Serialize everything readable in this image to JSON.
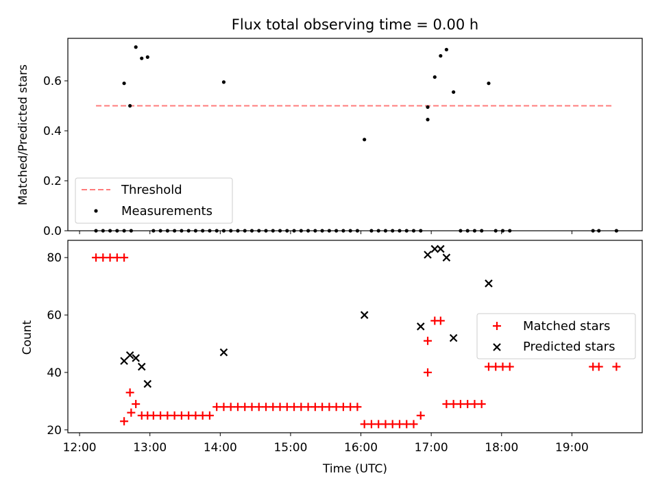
{
  "figure": {
    "title": "Flux total observing time = 0.00 h"
  },
  "chart_data": [
    {
      "type": "scatter",
      "title": "Flux total observing time = 0.00 h",
      "xlabel": "",
      "ylabel": "Matched/Predicted stars",
      "xlim": [
        "11:50",
        "20:00"
      ],
      "ylim": [
        0,
        0.77
      ],
      "x_axis_type": "time",
      "y_ticks": [
        0.0,
        0.2,
        0.4,
        0.6
      ],
      "y_tick_labels": [
        "0.0",
        "0.2",
        "0.4",
        "0.6"
      ],
      "legend": {
        "placement": "lower-left",
        "entries": [
          "Threshold",
          "Measurements"
        ]
      },
      "grid": false,
      "series": [
        {
          "name": "Threshold",
          "kind": "line",
          "style": "dashed",
          "color": "#ff7b7b",
          "x": [
            "12:14",
            "19:35"
          ],
          "y": [
            0.5,
            0.5
          ]
        },
        {
          "name": "Measurements",
          "kind": "points",
          "color": "#000000",
          "x": [
            "12:14",
            "12:20",
            "12:26",
            "12:32",
            "12:38",
            "12:44",
            "12:38",
            "12:43",
            "12:48",
            "12:53",
            "12:58",
            "13:03",
            "13:09",
            "13:15",
            "13:21",
            "13:27",
            "13:33",
            "13:39",
            "13:45",
            "13:51",
            "13:57",
            "14:03",
            "14:03",
            "14:09",
            "14:15",
            "14:21",
            "14:27",
            "14:33",
            "14:39",
            "14:45",
            "14:51",
            "14:57",
            "15:03",
            "15:09",
            "15:15",
            "15:21",
            "15:27",
            "15:33",
            "15:39",
            "15:45",
            "15:51",
            "15:57",
            "16:03",
            "16:09",
            "16:15",
            "16:21",
            "16:27",
            "16:33",
            "16:39",
            "16:45",
            "16:51",
            "16:57",
            "16:57",
            "17:03",
            "17:08",
            "17:13",
            "17:19",
            "17:25",
            "17:31",
            "17:37",
            "17:43",
            "17:49",
            "17:55",
            "18:01",
            "18:07",
            "19:18",
            "19:23",
            "19:38"
          ],
          "y": [
            0,
            0,
            0,
            0,
            0,
            0,
            0.59,
            0.5,
            0.735,
            0.69,
            0.695,
            0,
            0,
            0,
            0,
            0,
            0,
            0,
            0,
            0,
            0,
            0,
            0.595,
            0,
            0,
            0,
            0,
            0,
            0,
            0,
            0,
            0,
            0,
            0,
            0,
            0,
            0,
            0,
            0,
            0,
            0,
            0,
            0.365,
            0,
            0,
            0,
            0,
            0,
            0,
            0,
            0,
            0.445,
            0.495,
            0.615,
            0.7,
            0.725,
            0.555,
            0,
            0,
            0,
            0,
            0.59,
            0,
            0,
            0,
            0,
            0,
            0
          ]
        }
      ]
    },
    {
      "type": "scatter",
      "title": "",
      "xlabel": "Time (UTC)",
      "ylabel": "Count",
      "xlim": [
        "11:50",
        "20:00"
      ],
      "ylim": [
        19,
        86
      ],
      "x_axis_type": "time",
      "x_ticks": [
        "12:00",
        "13:00",
        "14:00",
        "15:00",
        "16:00",
        "17:00",
        "18:00",
        "19:00"
      ],
      "y_ticks": [
        20,
        40,
        60,
        80
      ],
      "y_tick_labels": [
        "20",
        "40",
        "60",
        "80"
      ],
      "legend": {
        "placement": "center-right",
        "entries": [
          "Matched stars",
          "Predicted stars"
        ]
      },
      "grid": false,
      "series": [
        {
          "name": "Matched stars",
          "marker": "+",
          "color": "#ff0000",
          "x": [
            "12:14",
            "12:20",
            "12:26",
            "12:32",
            "12:38",
            "12:44",
            "12:38",
            "12:43",
            "12:48",
            "12:53",
            "12:58",
            "13:03",
            "13:09",
            "13:15",
            "13:21",
            "13:27",
            "13:33",
            "13:39",
            "13:45",
            "13:51",
            "13:57",
            "14:03",
            "14:09",
            "14:15",
            "14:21",
            "14:27",
            "14:33",
            "14:39",
            "14:45",
            "14:51",
            "14:57",
            "15:03",
            "15:09",
            "15:15",
            "15:21",
            "15:27",
            "15:33",
            "15:39",
            "15:45",
            "15:51",
            "15:57",
            "16:03",
            "16:09",
            "16:15",
            "16:21",
            "16:27",
            "16:33",
            "16:39",
            "16:45",
            "16:51",
            "16:57",
            "16:57",
            "17:03",
            "17:08",
            "17:13",
            "17:19",
            "17:25",
            "17:31",
            "17:37",
            "17:43",
            "17:49",
            "17:55",
            "18:01",
            "18:07",
            "19:18",
            "19:23",
            "19:38"
          ],
          "y": [
            80,
            80,
            80,
            80,
            80,
            26,
            23,
            33,
            29,
            25,
            25,
            25,
            25,
            25,
            25,
            25,
            25,
            25,
            25,
            25,
            28,
            28,
            28,
            28,
            28,
            28,
            28,
            28,
            28,
            28,
            28,
            28,
            28,
            28,
            28,
            28,
            28,
            28,
            28,
            28,
            28,
            22,
            22,
            22,
            22,
            22,
            22,
            22,
            22,
            25,
            40,
            51,
            58,
            58,
            29,
            29,
            29,
            29,
            29,
            29,
            42,
            42,
            42,
            42,
            42,
            42,
            42
          ]
        },
        {
          "name": "Predicted stars",
          "marker": "x",
          "color": "#000000",
          "x": [
            "12:38",
            "12:43",
            "12:48",
            "12:53",
            "12:58",
            "14:03",
            "16:03",
            "16:51",
            "16:57",
            "17:03",
            "17:08",
            "17:13",
            "17:19",
            "17:49"
          ],
          "y": [
            44,
            46,
            45,
            42,
            36,
            47,
            60,
            56,
            81,
            83,
            83,
            80,
            52,
            71
          ]
        }
      ]
    }
  ]
}
